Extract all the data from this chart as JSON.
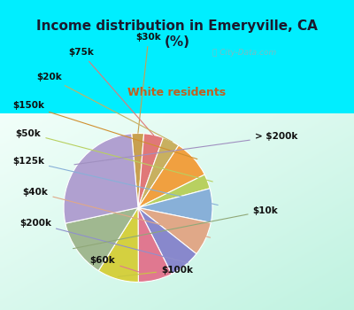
{
  "title": "Income distribution in Emeryville, CA\n(%)",
  "subtitle": "White residents",
  "title_color": "#1a1a2e",
  "subtitle_color": "#c06020",
  "bg_top": "#00eeff",
  "wedge_order": [
    "$30k",
    "$75k",
    "$20k",
    "$150k",
    "$50k",
    "$125k",
    "$40k",
    "$200k",
    "$60k",
    "$100k",
    "$10k",
    "> $200k"
  ],
  "values": [
    2.5,
    4.0,
    3.5,
    8.0,
    3.0,
    7.0,
    7.0,
    6.5,
    7.0,
    8.5,
    12.0,
    25.5
  ],
  "colors": [
    "#c8a050",
    "#e07878",
    "#c8b060",
    "#f0a040",
    "#b8d060",
    "#88b0d8",
    "#e0a888",
    "#8888cc",
    "#e07890",
    "#d4d040",
    "#a0b890",
    "#b0a0d0"
  ],
  "label_fontsize": 7.5,
  "startangle": 95
}
